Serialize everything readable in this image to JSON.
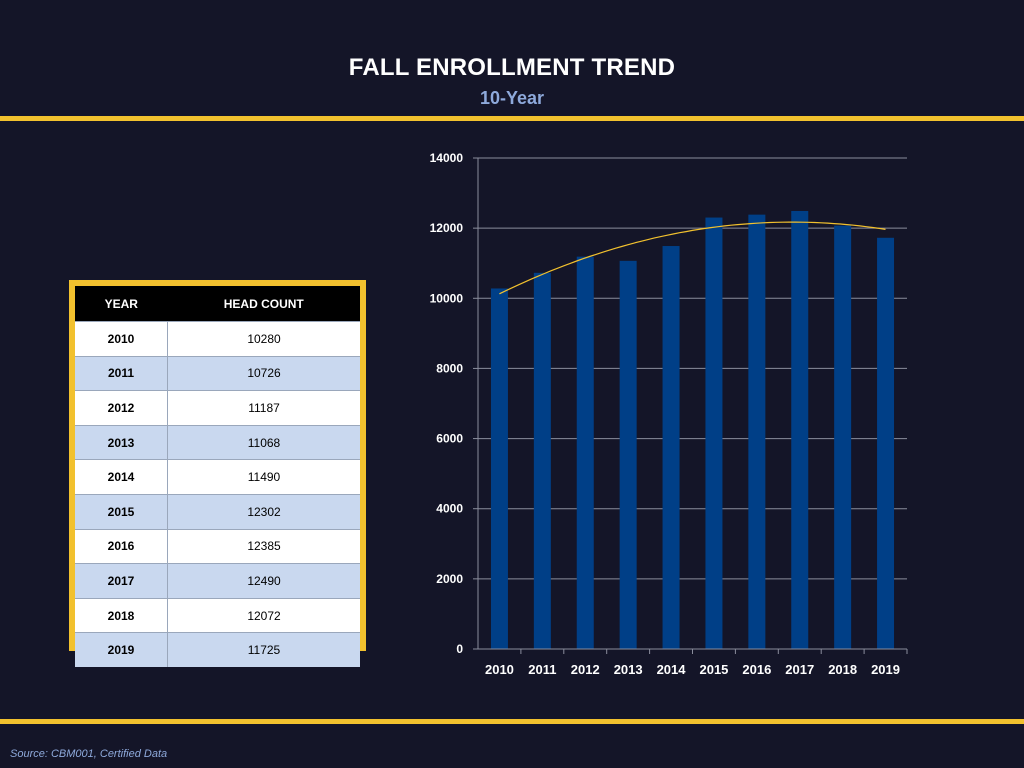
{
  "title": "FALL ENROLLMENT TREND",
  "subtitle": "10-Year",
  "table": {
    "headers": [
      "YEAR",
      "HEAD COUNT"
    ],
    "rows": [
      [
        "2010",
        "10280"
      ],
      [
        "2011",
        "10726"
      ],
      [
        "2012",
        "11187"
      ],
      [
        "2013",
        "11068"
      ],
      [
        "2014",
        "11490"
      ],
      [
        "2015",
        "12302"
      ],
      [
        "2016",
        "12385"
      ],
      [
        "2017",
        "12490"
      ],
      [
        "2018",
        "12072"
      ],
      [
        "2019",
        "11725"
      ]
    ]
  },
  "chart_data": {
    "type": "bar",
    "categories": [
      "2010",
      "2011",
      "2012",
      "2013",
      "2014",
      "2015",
      "2016",
      "2017",
      "2018",
      "2019"
    ],
    "values": [
      10280,
      10726,
      11187,
      11068,
      11490,
      12302,
      12385,
      12490,
      12072,
      11725
    ],
    "ylim": [
      0,
      14000
    ],
    "yticks": [
      0,
      2000,
      4000,
      6000,
      8000,
      10000,
      12000,
      14000
    ],
    "grid": true,
    "trendline": "polynomial",
    "colors": {
      "bar": "#003f87",
      "trend": "#f2c12e",
      "grid": "#8a8d9c",
      "axis_text": "#ffffff"
    }
  },
  "source": "Source: CBM001, Certified Data",
  "colors": {
    "background": "#141528",
    "accent": "#f2c12e",
    "subtitle": "#8ea9db"
  }
}
